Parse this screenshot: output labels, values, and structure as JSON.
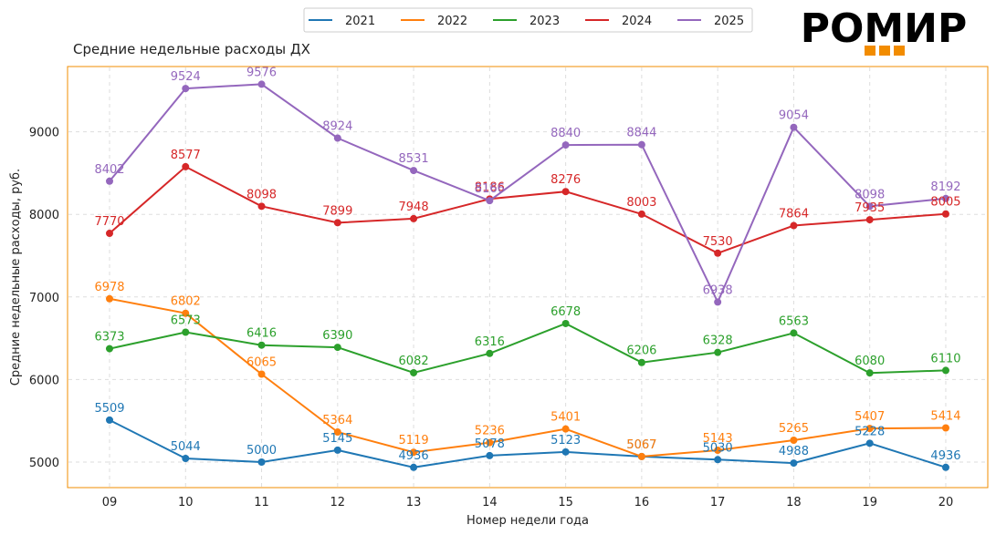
{
  "chart_data": {
    "type": "line",
    "title": "Средние недельные расходы ДХ",
    "xlabel": "Номер недели года",
    "ylabel": "Средние недельные расходы, руб.",
    "categories": [
      "09",
      "10",
      "11",
      "12",
      "13",
      "14",
      "15",
      "16",
      "17",
      "18",
      "19",
      "20"
    ],
    "ylim": [
      4700,
      9820
    ],
    "yticks": [
      5000,
      6000,
      7000,
      8000,
      9000
    ],
    "grid": true,
    "legend_position": "top-center",
    "series": [
      {
        "name": "2021",
        "color": "#1f77b4",
        "values": [
          5509,
          5044,
          5000,
          5145,
          4936,
          5078,
          5123,
          5067,
          5030,
          4988,
          5228,
          4936
        ]
      },
      {
        "name": "2022",
        "color": "#ff7f0e",
        "values": [
          6978,
          6802,
          6065,
          5364,
          5119,
          5236,
          5401,
          5067,
          5143,
          5265,
          5407,
          5414
        ]
      },
      {
        "name": "2023",
        "color": "#2ca02c",
        "values": [
          6373,
          6573,
          6416,
          6390,
          6082,
          6316,
          6678,
          6206,
          6328,
          6563,
          6080,
          6110
        ]
      },
      {
        "name": "2024",
        "color": "#d62728",
        "values": [
          7770,
          8577,
          8098,
          7899,
          7948,
          8186,
          8276,
          8003,
          7530,
          7864,
          7935,
          8005
        ]
      },
      {
        "name": "2025",
        "color": "#9467bd",
        "values": [
          8402,
          9524,
          9576,
          8924,
          8531,
          8166,
          8840,
          8844,
          6938,
          9054,
          8098,
          8192
        ]
      }
    ]
  },
  "logo": {
    "text": "РОМИР",
    "accent_color": "#f28c00"
  },
  "frame_color": "#f28c00"
}
